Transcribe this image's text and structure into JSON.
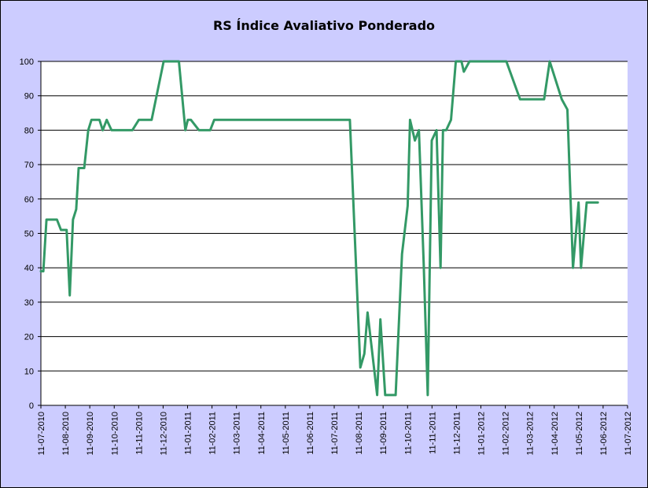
{
  "chart_data": {
    "type": "line",
    "title": "RS Índice Avaliativo Ponderado",
    "xlabel": "",
    "ylabel": "",
    "ylim": [
      0,
      100
    ],
    "yticks": [
      0,
      10,
      20,
      30,
      40,
      50,
      60,
      70,
      80,
      90,
      100
    ],
    "xlim": [
      "2010-07-11",
      "2012-07-11"
    ],
    "xtick_labels": [
      "11-07-2010",
      "11-08-2010",
      "11-09-2010",
      "11-10-2010",
      "11-11-2010",
      "11-12-2010",
      "11-01-2011",
      "11-02-2011",
      "11-03-2011",
      "11-04-2011",
      "11-05-2011",
      "11-06-2011",
      "11-07-2011",
      "11-08-2011",
      "11-09-2011",
      "11-10-2011",
      "11-11-2011",
      "11-12-2011",
      "11-01-2012",
      "11-02-2012",
      "11-03-2012",
      "11-04-2012",
      "11-05-2012",
      "11-06-2012",
      "11-07-2012"
    ],
    "grid": "horizontal",
    "colors": {
      "plot_background": "#ffffff",
      "chart_background": "#ccccff",
      "line": "#339966",
      "grid": "#000000"
    },
    "series": [
      {
        "x": [
          "2010-07-11",
          "2010-07-14",
          "2010-07-18",
          "2010-07-25",
          "2010-07-31",
          "2010-08-05",
          "2010-08-12",
          "2010-08-16",
          "2010-08-20",
          "2010-08-24",
          "2010-08-27",
          "2010-09-03",
          "2010-09-08",
          "2010-09-12",
          "2010-09-15",
          "2010-09-22",
          "2010-09-26",
          "2010-10-01",
          "2010-10-07",
          "2010-10-13",
          "2010-10-20",
          "2010-10-24",
          "2010-10-29",
          "2010-11-02",
          "2010-11-10",
          "2010-11-17",
          "2010-11-26",
          "2010-12-11",
          "2010-12-30",
          "2011-01-07",
          "2011-01-10",
          "2011-01-14",
          "2011-01-24",
          "2011-02-07",
          "2011-02-12",
          "2011-02-17",
          "2011-02-25",
          "2011-03-04",
          "2011-03-11",
          "2011-03-17",
          "2011-03-24",
          "2011-04-11",
          "2011-05-11",
          "2011-06-11",
          "2011-07-11",
          "2011-07-31",
          "2011-08-13",
          "2011-08-18",
          "2011-08-22",
          "2011-08-27",
          "2011-09-03",
          "2011-09-07",
          "2011-09-13",
          "2011-09-20",
          "2011-09-26",
          "2011-10-04",
          "2011-10-11",
          "2011-10-14",
          "2011-10-20",
          "2011-10-25",
          "2011-10-31",
          "2011-11-05",
          "2011-11-10",
          "2011-11-16",
          "2011-11-21",
          "2011-11-24",
          "2011-11-28",
          "2011-12-04",
          "2011-12-10",
          "2011-12-17",
          "2011-12-20",
          "2011-12-27",
          "2012-01-07",
          "2012-01-14",
          "2012-01-21",
          "2012-01-28",
          "2012-02-11",
          "2012-02-28",
          "2012-03-11",
          "2012-03-29",
          "2012-04-05",
          "2012-04-20",
          "2012-04-27",
          "2012-05-04",
          "2012-05-11",
          "2012-05-14",
          "2012-05-21",
          "2012-05-28",
          "2012-06-04"
        ],
        "y": [
          39,
          39,
          54,
          54,
          54,
          51,
          51,
          32,
          54,
          57,
          69,
          69,
          80,
          83,
          83,
          83,
          80,
          83,
          80,
          80,
          80,
          80,
          80,
          80,
          83,
          83,
          83,
          100,
          100,
          80,
          83,
          83,
          80,
          80,
          83,
          83,
          83,
          83,
          83,
          83,
          83,
          83,
          83,
          83,
          83,
          83,
          11,
          15,
          27,
          17,
          3,
          25,
          3,
          3,
          3,
          44,
          58,
          83,
          77,
          80,
          41,
          3,
          77,
          80,
          40,
          80,
          80,
          83,
          100,
          100,
          97,
          100,
          100,
          100,
          100,
          100,
          100,
          89,
          89,
          89,
          100,
          89,
          86,
          40,
          59,
          40,
          59,
          59,
          59
        ]
      }
    ]
  }
}
